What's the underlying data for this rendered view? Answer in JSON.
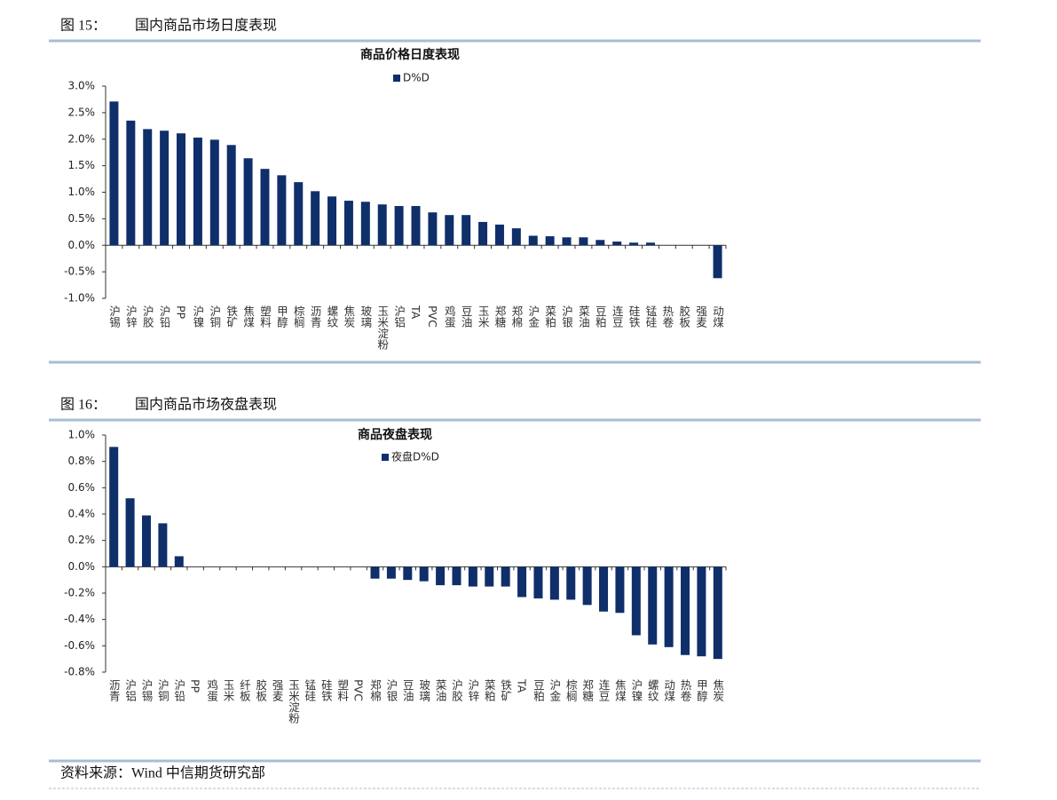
{
  "figures": [
    {
      "label": "图 15：",
      "title": "国内商品市场日度表现"
    },
    {
      "label": "图 16：",
      "title": "国内商品市场夜盘表现"
    }
  ],
  "source": "资料来源：Wind  中信期货研究部",
  "chart_data": [
    {
      "type": "bar",
      "title": "商品价格日度表现",
      "categories": [
        "沪锡",
        "沪锌",
        "沪胶",
        "沪铅",
        "PP",
        "沪镍",
        "沪铜",
        "铁矿",
        "焦煤",
        "塑料",
        "甲醇",
        "棕榈",
        "沥青",
        "螺纹",
        "焦炭",
        "玻璃",
        "玉米淀粉",
        "沪铝",
        "TA",
        "PVC",
        "鸡蛋",
        "豆油",
        "玉米",
        "郑糖",
        "郑棉",
        "沪金",
        "菜粕",
        "沪银",
        "菜油",
        "豆粕",
        "连豆",
        "硅铁",
        "锰硅",
        "热卷",
        "胶板",
        "强麦",
        "动煤"
      ],
      "series": [
        {
          "name": "D%D",
          "color": "#0f2f6a",
          "values": [
            2.71,
            2.35,
            2.19,
            2.16,
            2.11,
            2.03,
            1.99,
            1.89,
            1.64,
            1.44,
            1.32,
            1.19,
            1.02,
            0.92,
            0.84,
            0.82,
            0.77,
            0.74,
            0.74,
            0.62,
            0.57,
            0.57,
            0.44,
            0.39,
            0.32,
            0.18,
            0.17,
            0.15,
            0.15,
            0.1,
            0.07,
            0.05,
            0.05,
            0,
            0,
            0,
            -0.62
          ]
        }
      ],
      "ylim": [
        -1.0,
        3.0
      ],
      "yticks": [
        {
          "value": 3.0,
          "label": "3.0%"
        },
        {
          "value": 2.5,
          "label": "2.5%"
        },
        {
          "value": 2.0,
          "label": "2.0%"
        },
        {
          "value": 1.5,
          "label": "1.5%"
        },
        {
          "value": 1.0,
          "label": "1.0%"
        },
        {
          "value": 0.5,
          "label": "0.5%"
        },
        {
          "value": 0,
          "label": "0.0%"
        },
        {
          "value": -0.5,
          "label": "-0.5%"
        },
        {
          "value": -1.0,
          "label": "-1.0%"
        }
      ],
      "grid": false
    },
    {
      "type": "bar",
      "title": "商品夜盘表现",
      "categories": [
        "沥青",
        "沪铝",
        "沪锡",
        "沪铜",
        "沪铅",
        "PP",
        "鸡蛋",
        "玉米",
        "纤板",
        "胶板",
        "强麦",
        "玉米淀粉",
        "锰硅",
        "硅铁",
        "塑料",
        "PVC",
        "郑棉",
        "沪银",
        "豆油",
        "玻璃",
        "菜油",
        "沪胶",
        "沪锌",
        "菜粕",
        "铁矿",
        "TA",
        "豆粕",
        "沪金",
        "棕榈",
        "郑糖",
        "连豆",
        "焦煤",
        "沪镍",
        "螺纹",
        "动煤",
        "热卷",
        "甲醇",
        "焦炭"
      ],
      "series": [
        {
          "name": "夜盘D%D",
          "color": "#0f2f6a",
          "values": [
            0.91,
            0.52,
            0.39,
            0.33,
            0.08,
            0,
            0,
            0,
            0,
            0,
            0,
            0,
            0,
            0,
            0,
            0,
            -0.09,
            -0.09,
            -0.1,
            -0.11,
            -0.14,
            -0.14,
            -0.15,
            -0.15,
            -0.15,
            -0.23,
            -0.24,
            -0.25,
            -0.25,
            -0.29,
            -0.34,
            -0.35,
            -0.52,
            -0.59,
            -0.61,
            -0.67,
            -0.68,
            -0.7
          ]
        }
      ],
      "ylim": [
        -0.8,
        1.0
      ],
      "yticks": [
        {
          "value": 1.0,
          "label": "1.0%"
        },
        {
          "value": 0.8,
          "label": "0.8%"
        },
        {
          "value": 0.6,
          "label": "0.6%"
        },
        {
          "value": 0.4,
          "label": "0.4%"
        },
        {
          "value": 0.2,
          "label": "0.2%"
        },
        {
          "value": 0,
          "label": "0.0%"
        },
        {
          "value": -0.2,
          "label": "-0.2%"
        },
        {
          "value": -0.4,
          "label": "-0.4%"
        },
        {
          "value": -0.6,
          "label": "-0.6%"
        },
        {
          "value": -0.8,
          "label": "-0.8%"
        }
      ],
      "grid": false
    }
  ]
}
